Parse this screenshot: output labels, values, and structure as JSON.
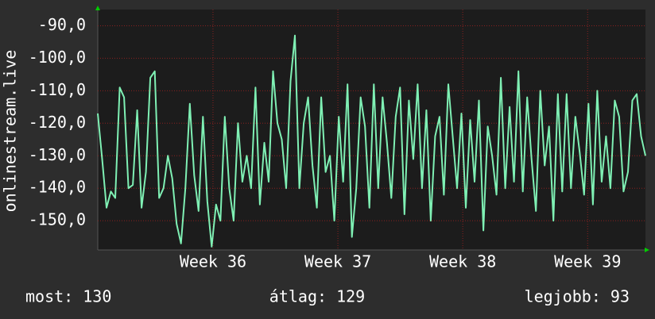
{
  "chart_data": {
    "type": "line",
    "y_label": "onlinestream.live",
    "xlim": [
      0,
      125
    ],
    "xticks": [
      {
        "value": 26.3,
        "label": "Week 36"
      },
      {
        "value": 54.8,
        "label": "Week 37"
      },
      {
        "value": 83.3,
        "label": "Week 38"
      },
      {
        "value": 111.8,
        "label": "Week 39"
      }
    ],
    "ylim": [
      -159,
      -85
    ],
    "yticks": [
      {
        "value": -150,
        "label": "-150,0"
      },
      {
        "value": -140,
        "label": "-140,0"
      },
      {
        "value": -130,
        "label": "-130,0"
      },
      {
        "value": -120,
        "label": "-120,0"
      },
      {
        "value": -110,
        "label": "-110,0"
      },
      {
        "value": -100,
        "label": "-100,0"
      },
      {
        "value": -90,
        "label": "-90,0"
      }
    ],
    "grid": true,
    "series": [
      {
        "color": "#7ff0b4",
        "values": [
          -117,
          -131,
          -146,
          -141,
          -143,
          -109,
          -112,
          -140,
          -139,
          -116,
          -146,
          -135,
          -106,
          -104,
          -143,
          -140,
          -130,
          -137,
          -151,
          -157,
          -140,
          -114,
          -136,
          -147,
          -118,
          -144,
          -158,
          -145,
          -150,
          -118,
          -140,
          -150,
          -120,
          -138,
          -130,
          -140,
          -109,
          -145,
          -126,
          -138,
          -104,
          -120,
          -125,
          -140,
          -107,
          -93,
          -140,
          -120,
          -112,
          -133,
          -146,
          -112,
          -135,
          -130,
          -150,
          -118,
          -138,
          -108,
          -155,
          -140,
          -112,
          -121,
          -146,
          -108,
          -140,
          -112,
          -126,
          -143,
          -118,
          -109,
          -148,
          -113,
          -131,
          -108,
          -140,
          -116,
          -150,
          -124,
          -118,
          -142,
          -108,
          -124,
          -140,
          -117,
          -146,
          -119,
          -138,
          -113,
          -153,
          -121,
          -130,
          -142,
          -106,
          -140,
          -115,
          -138,
          -104,
          -141,
          -112,
          -131,
          -147,
          -110,
          -133,
          -121,
          -150,
          -111,
          -141,
          -111,
          -140,
          -118,
          -129,
          -142,
          -114,
          -145,
          -110,
          -138,
          -124,
          -140,
          -113,
          -118,
          -141,
          -135,
          -113,
          -111,
          -124,
          -130
        ]
      }
    ],
    "footer": [
      "most: 130",
      "átlag: 129",
      "legjobb: 93"
    ]
  }
}
